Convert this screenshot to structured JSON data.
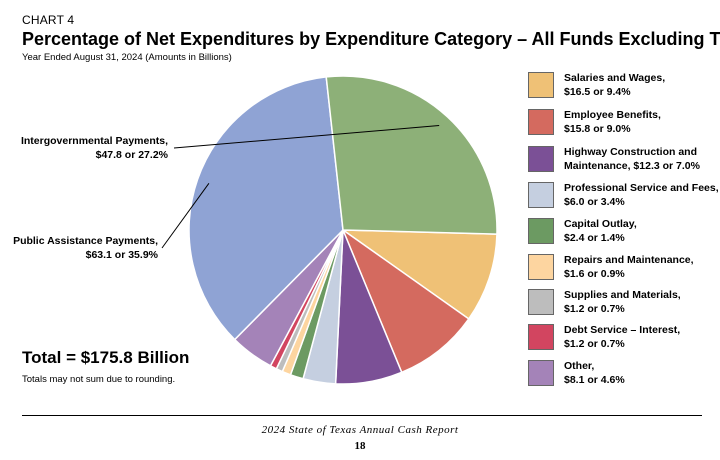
{
  "header": {
    "chart_label": "CHART 4",
    "title": "Percentage of Net Expenditures by Expenditure Category – All Funds Excluding Trust",
    "subtitle": "Year Ended August 31, 2024  (Amounts in Billions)"
  },
  "chart_data": {
    "type": "pie",
    "title": "Percentage of Net Expenditures by Expenditure Category – All Funds Excluding Trust",
    "total_label": "Total = $175.8 Billion",
    "note": "Totals may not sum due to rounding.",
    "slices": [
      {
        "label_lines": [
          "Salaries and Wages,",
          "$16.5 or 9.4%"
        ],
        "value": 16.5,
        "percent": 9.4,
        "color": "#efc176"
      },
      {
        "label_lines": [
          "Employee Benefits,",
          "$15.8 or 9.0%"
        ],
        "value": 15.8,
        "percent": 9.0,
        "color": "#d46a5f"
      },
      {
        "label_lines": [
          "Highway Construction and",
          "Maintenance, $12.3 or 7.0%"
        ],
        "value": 12.3,
        "percent": 7.0,
        "color": "#7b5096"
      },
      {
        "label_lines": [
          "Professional Service and Fees,",
          "$6.0 or 3.4%"
        ],
        "value": 6.0,
        "percent": 3.4,
        "color": "#c5cfe0"
      },
      {
        "label_lines": [
          "Capital Outlay,",
          "$2.4 or 1.4%"
        ],
        "value": 2.4,
        "percent": 1.4,
        "color": "#6c9a62"
      },
      {
        "label_lines": [
          "Repairs and Maintenance,",
          "$1.6 or 0.9%"
        ],
        "value": 1.6,
        "percent": 0.9,
        "color": "#fdd5a0"
      },
      {
        "label_lines": [
          "Supplies and Materials,",
          "$1.2 or 0.7%"
        ],
        "value": 1.2,
        "percent": 0.7,
        "color": "#bdbdbd"
      },
      {
        "label_lines": [
          "Debt Service – Interest,",
          "$1.2 or 0.7%"
        ],
        "value": 1.2,
        "percent": 0.7,
        "color": "#d24560"
      },
      {
        "label_lines": [
          "Other,",
          "$8.1 or 4.6%"
        ],
        "value": 8.1,
        "percent": 4.6,
        "color": "#a483b8"
      },
      {
        "label_lines": [
          "Public Assistance Payments,",
          "$63.1 or 35.9%"
        ],
        "value": 63.1,
        "percent": 35.9,
        "color": "#8fa3d4"
      },
      {
        "label_lines": [
          "Intergovernmental Payments,",
          "$47.8 or 27.2%"
        ],
        "value": 47.8,
        "percent": 27.2,
        "color": "#8db078"
      }
    ]
  },
  "footer": {
    "report_title": "2024 State of Texas Annual Cash Report",
    "page_number": "18"
  }
}
